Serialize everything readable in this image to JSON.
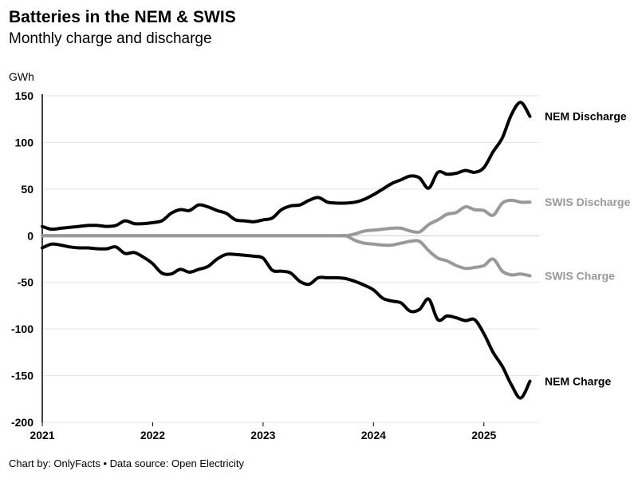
{
  "title": "Batteries in the NEM & SWIS",
  "subtitle": "Monthly charge and discharge",
  "footer": "Chart by: OnlyFacts • Data source: Open Electricity",
  "chart_data": {
    "type": "line",
    "title": "Batteries in the NEM & SWIS",
    "subtitle": "Monthly charge and discharge",
    "ylabel": "GWh",
    "xlabel": "",
    "ylim": [
      -200,
      150
    ],
    "xlim": [
      "2021-01",
      "2025-07"
    ],
    "y_ticks": [
      150,
      100,
      50,
      0,
      -50,
      -100,
      -150,
      -200
    ],
    "x_ticks": [
      "2021",
      "2022",
      "2023",
      "2024",
      "2025"
    ],
    "grid": "horizontal",
    "legend": "direct labels at line ends",
    "x": [
      "2021-01",
      "2021-02",
      "2021-03",
      "2021-04",
      "2021-05",
      "2021-06",
      "2021-07",
      "2021-08",
      "2021-09",
      "2021-10",
      "2021-11",
      "2021-12",
      "2022-01",
      "2022-02",
      "2022-03",
      "2022-04",
      "2022-05",
      "2022-06",
      "2022-07",
      "2022-08",
      "2022-09",
      "2022-10",
      "2022-11",
      "2022-12",
      "2023-01",
      "2023-02",
      "2023-03",
      "2023-04",
      "2023-05",
      "2023-06",
      "2023-07",
      "2023-08",
      "2023-09",
      "2023-10",
      "2023-11",
      "2023-12",
      "2024-01",
      "2024-02",
      "2024-03",
      "2024-04",
      "2024-05",
      "2024-06",
      "2024-07",
      "2024-08",
      "2024-09",
      "2024-10",
      "2024-11",
      "2024-12",
      "2025-01",
      "2025-02",
      "2025-03",
      "2025-04",
      "2025-05",
      "2025-06"
    ],
    "series": [
      {
        "name": "NEM Discharge",
        "color": "#000000",
        "values": [
          10,
          7,
          8,
          9,
          10,
          11,
          11,
          10,
          11,
          16,
          13,
          13,
          14,
          16,
          24,
          28,
          27,
          33,
          31,
          27,
          24,
          17,
          16,
          15,
          17,
          19,
          28,
          32,
          33,
          38,
          41,
          36,
          35,
          35,
          36,
          39,
          44,
          50,
          56,
          60,
          64,
          62,
          51,
          68,
          66,
          67,
          70,
          68,
          73,
          90,
          105,
          130,
          143,
          128
        ]
      },
      {
        "name": "NEM Charge",
        "color": "#000000",
        "values": [
          -13,
          -9,
          -10,
          -12,
          -13,
          -13,
          -14,
          -14,
          -12,
          -19,
          -18,
          -23,
          -30,
          -40,
          -41,
          -36,
          -39,
          -36,
          -33,
          -25,
          -20,
          -20,
          -21,
          -22,
          -24,
          -37,
          -38,
          -40,
          -49,
          -52,
          -45,
          -45,
          -45,
          -46,
          -49,
          -53,
          -58,
          -67,
          -70,
          -72,
          -81,
          -79,
          -68,
          -90,
          -86,
          -88,
          -91,
          -90,
          -105,
          -125,
          -140,
          -160,
          -174,
          -156
        ]
      },
      {
        "name": "SWIS Discharge",
        "color": "#999999",
        "values": [
          0,
          0,
          0,
          0,
          0,
          0,
          0,
          0,
          0,
          0,
          0,
          0,
          0,
          0,
          0,
          0,
          0,
          0,
          0,
          0,
          0,
          0,
          0,
          0,
          0,
          0,
          0,
          0,
          0,
          0,
          0,
          0,
          0,
          0,
          2,
          5,
          6,
          7,
          8,
          8,
          5,
          4,
          12,
          17,
          23,
          25,
          31,
          28,
          27,
          22,
          35,
          38,
          36,
          36
        ]
      },
      {
        "name": "SWIS Charge",
        "color": "#999999",
        "values": [
          0,
          0,
          0,
          0,
          0,
          0,
          0,
          0,
          0,
          0,
          0,
          0,
          0,
          0,
          0,
          0,
          0,
          0,
          0,
          0,
          0,
          0,
          0,
          0,
          0,
          0,
          0,
          0,
          0,
          0,
          0,
          0,
          0,
          0,
          -5,
          -8,
          -9,
          -10,
          -10,
          -8,
          -6,
          -6,
          -16,
          -24,
          -27,
          -32,
          -35,
          -34,
          -32,
          -25,
          -38,
          -42,
          -41,
          -43
        ]
      }
    ]
  }
}
